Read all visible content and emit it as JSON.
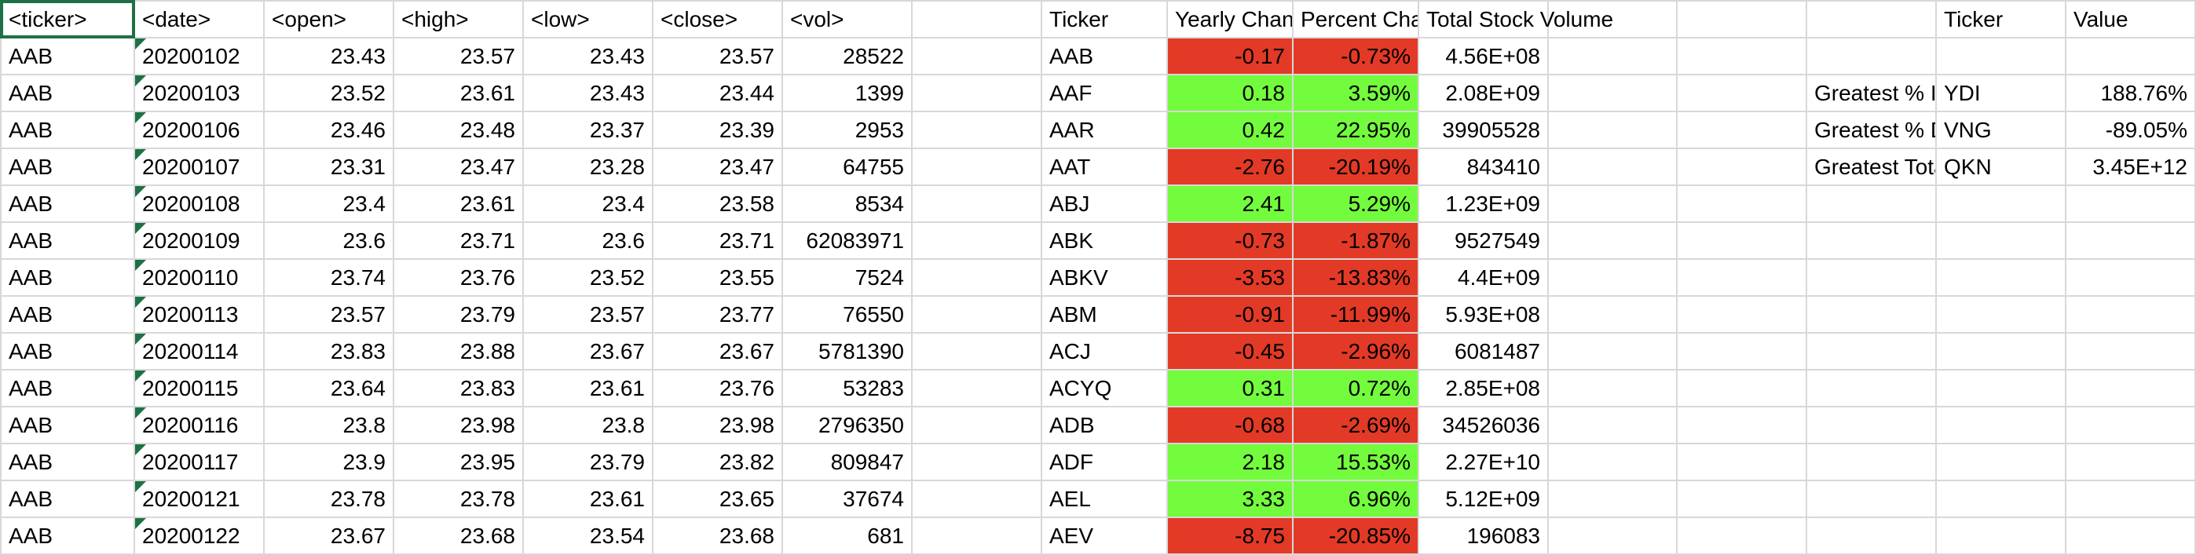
{
  "colors": {
    "negative_fill": "#e23a26",
    "positive_fill": "#73fb3e",
    "selection": "#1e7145"
  },
  "header": {
    "ticker": "<ticker>",
    "date": "<date>",
    "open": "<open>",
    "high": "<high>",
    "low": "<low>",
    "close": "<close>",
    "vol": "<vol>",
    "summary_ticker": "Ticker",
    "yearly_change": "Yearly Change",
    "percent_change": "Percent Change",
    "total_volume": "Total Stock Volume",
    "greatest_ticker": "Ticker",
    "greatest_value": "Value"
  },
  "rows": [
    {
      "ticker": "AAB",
      "date": "20200102",
      "open": "23.43",
      "high": "23.57",
      "low": "23.43",
      "close": "23.57",
      "vol": "28522",
      "s_ticker": "AAB",
      "yearly": "-0.17",
      "percent": "-0.73%",
      "total": "4.56E+08",
      "sign": "neg",
      "g_label": "",
      "g_ticker": "",
      "g_value": ""
    },
    {
      "ticker": "AAB",
      "date": "20200103",
      "open": "23.52",
      "high": "23.61",
      "low": "23.43",
      "close": "23.44",
      "vol": "1399",
      "s_ticker": "AAF",
      "yearly": "0.18",
      "percent": "3.59%",
      "total": "2.08E+09",
      "sign": "pos",
      "g_label": "Greatest % Increase",
      "g_ticker": "YDI",
      "g_value": "188.76%"
    },
    {
      "ticker": "AAB",
      "date": "20200106",
      "open": "23.46",
      "high": "23.48",
      "low": "23.37",
      "close": "23.39",
      "vol": "2953",
      "s_ticker": "AAR",
      "yearly": "0.42",
      "percent": "22.95%",
      "total": "39905528",
      "sign": "pos",
      "g_label": "Greatest % Decrease",
      "g_ticker": "VNG",
      "g_value": "-89.05%"
    },
    {
      "ticker": "AAB",
      "date": "20200107",
      "open": "23.31",
      "high": "23.47",
      "low": "23.28",
      "close": "23.47",
      "vol": "64755",
      "s_ticker": "AAT",
      "yearly": "-2.76",
      "percent": "-20.19%",
      "total": "843410",
      "sign": "neg",
      "g_label": "Greatest Total Volume",
      "g_ticker": "QKN",
      "g_value": "3.45E+12"
    },
    {
      "ticker": "AAB",
      "date": "20200108",
      "open": "23.4",
      "high": "23.61",
      "low": "23.4",
      "close": "23.58",
      "vol": "8534",
      "s_ticker": "ABJ",
      "yearly": "2.41",
      "percent": "5.29%",
      "total": "1.23E+09",
      "sign": "pos",
      "g_label": "",
      "g_ticker": "",
      "g_value": ""
    },
    {
      "ticker": "AAB",
      "date": "20200109",
      "open": "23.6",
      "high": "23.71",
      "low": "23.6",
      "close": "23.71",
      "vol": "62083971",
      "s_ticker": "ABK",
      "yearly": "-0.73",
      "percent": "-1.87%",
      "total": "9527549",
      "sign": "neg",
      "g_label": "",
      "g_ticker": "",
      "g_value": ""
    },
    {
      "ticker": "AAB",
      "date": "20200110",
      "open": "23.74",
      "high": "23.76",
      "low": "23.52",
      "close": "23.55",
      "vol": "7524",
      "s_ticker": "ABKV",
      "yearly": "-3.53",
      "percent": "-13.83%",
      "total": "4.4E+09",
      "sign": "neg",
      "g_label": "",
      "g_ticker": "",
      "g_value": ""
    },
    {
      "ticker": "AAB",
      "date": "20200113",
      "open": "23.57",
      "high": "23.79",
      "low": "23.57",
      "close": "23.77",
      "vol": "76550",
      "s_ticker": "ABM",
      "yearly": "-0.91",
      "percent": "-11.99%",
      "total": "5.93E+08",
      "sign": "neg",
      "g_label": "",
      "g_ticker": "",
      "g_value": ""
    },
    {
      "ticker": "AAB",
      "date": "20200114",
      "open": "23.83",
      "high": "23.88",
      "low": "23.67",
      "close": "23.67",
      "vol": "5781390",
      "s_ticker": "ACJ",
      "yearly": "-0.45",
      "percent": "-2.96%",
      "total": "6081487",
      "sign": "neg",
      "g_label": "",
      "g_ticker": "",
      "g_value": ""
    },
    {
      "ticker": "AAB",
      "date": "20200115",
      "open": "23.64",
      "high": "23.83",
      "low": "23.61",
      "close": "23.76",
      "vol": "53283",
      "s_ticker": "ACYQ",
      "yearly": "0.31",
      "percent": "0.72%",
      "total": "2.85E+08",
      "sign": "pos",
      "g_label": "",
      "g_ticker": "",
      "g_value": ""
    },
    {
      "ticker": "AAB",
      "date": "20200116",
      "open": "23.8",
      "high": "23.98",
      "low": "23.8",
      "close": "23.98",
      "vol": "2796350",
      "s_ticker": "ADB",
      "yearly": "-0.68",
      "percent": "-2.69%",
      "total": "34526036",
      "sign": "neg",
      "g_label": "",
      "g_ticker": "",
      "g_value": ""
    },
    {
      "ticker": "AAB",
      "date": "20200117",
      "open": "23.9",
      "high": "23.95",
      "low": "23.79",
      "close": "23.82",
      "vol": "809847",
      "s_ticker": "ADF",
      "yearly": "2.18",
      "percent": "15.53%",
      "total": "2.27E+10",
      "sign": "pos",
      "g_label": "",
      "g_ticker": "",
      "g_value": ""
    },
    {
      "ticker": "AAB",
      "date": "20200121",
      "open": "23.78",
      "high": "23.78",
      "low": "23.61",
      "close": "23.65",
      "vol": "37674",
      "s_ticker": "AEL",
      "yearly": "3.33",
      "percent": "6.96%",
      "total": "5.12E+09",
      "sign": "pos",
      "g_label": "",
      "g_ticker": "",
      "g_value": ""
    },
    {
      "ticker": "AAB",
      "date": "20200122",
      "open": "23.67",
      "high": "23.68",
      "low": "23.54",
      "close": "23.68",
      "vol": "681",
      "s_ticker": "AEV",
      "yearly": "-8.75",
      "percent": "-20.85%",
      "total": "196083",
      "sign": "neg",
      "g_label": "",
      "g_ticker": "",
      "g_value": ""
    }
  ]
}
